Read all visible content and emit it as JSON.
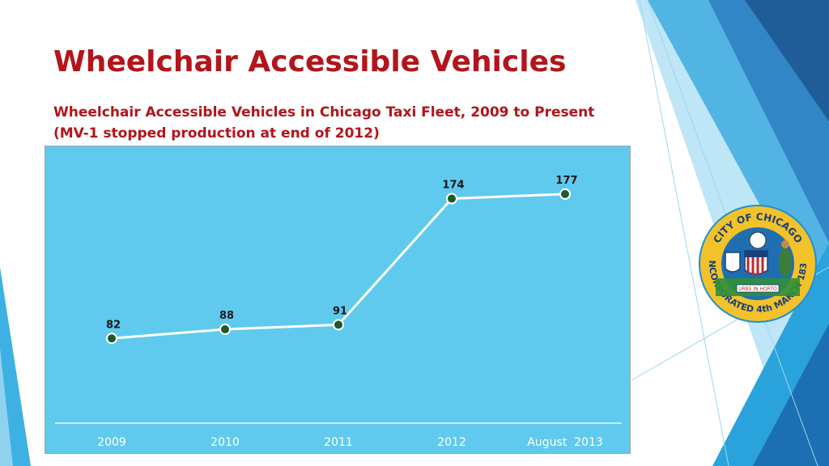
{
  "slide": {
    "title": "Wheelchair Accessible Vehicles",
    "subtitle_line1": "Wheelchair Accessible Vehicles in Chicago Taxi Fleet, 2009 to Present",
    "subtitle_line2": "(MV-1 stopped production at end of 2012)"
  },
  "seal": {
    "text_top": "CITY OF CHICAGO",
    "text_bottom": "INCORPORATED 4th MARCH 1837",
    "motto": "URBS IN HORTO"
  },
  "colors": {
    "title": "#b4141b",
    "chart_background": "#5fcaed",
    "line": "#ffffff",
    "marker": "#1f5a2a",
    "tick_label": "#ffffff",
    "data_label": "#1a1a1a"
  },
  "chart_data": {
    "type": "line",
    "categories": [
      "2009",
      "2010",
      "2011",
      "2012",
      "August  2013"
    ],
    "series": [
      {
        "values": [
          82,
          88,
          91,
          174,
          177
        ]
      }
    ],
    "data_labels": [
      "82",
      "88",
      "91",
      "174",
      "177"
    ],
    "ylim": [
      0,
      200
    ],
    "xlabel": "",
    "ylabel": "",
    "grid": false,
    "legend": "none",
    "y_axis_visible": false
  }
}
